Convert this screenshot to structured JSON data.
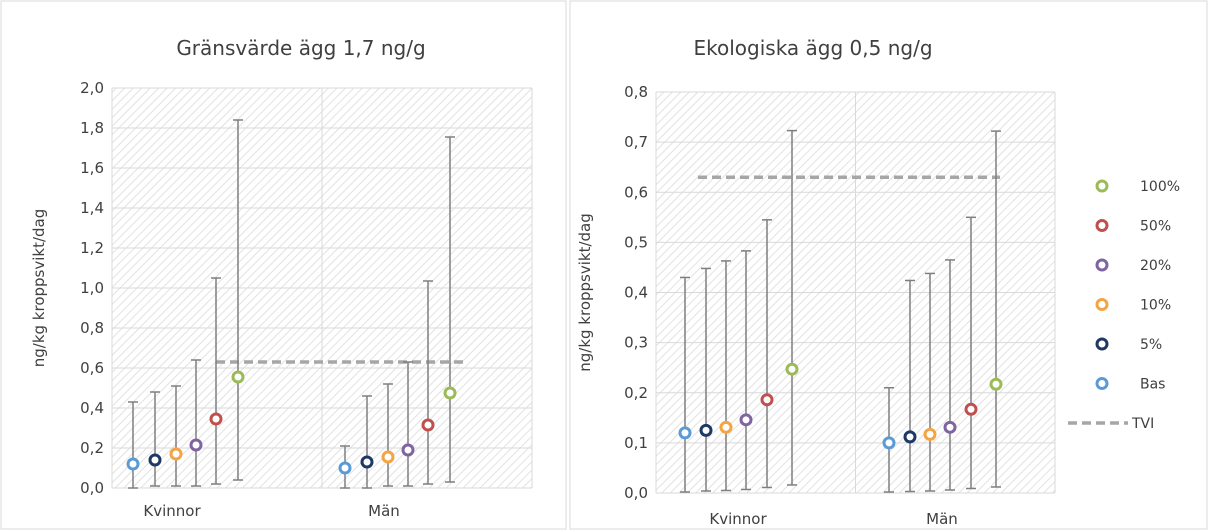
{
  "chart_data": [
    {
      "type": "scatter",
      "title": "Gränsvärde ägg 1,7 ng/g",
      "ylabel": "ng/kg kroppsvikt/dag",
      "xlabel": "",
      "categories": [
        "Kvinnor",
        "Män"
      ],
      "ylim": [
        0,
        2.0
      ],
      "ytick_labels": [
        "0,0",
        "0,2",
        "0,4",
        "0,6",
        "0,8",
        "1,0",
        "1,2",
        "1,4",
        "1,6",
        "1,8",
        "2,0"
      ],
      "grid": true,
      "tvi": 0.63,
      "series": [
        {
          "key": "bas",
          "color": "#5B9BD5",
          "values": [
            0.12,
            0.1
          ],
          "low": [
            0.0,
            0.0
          ],
          "high": [
            0.43,
            0.21
          ]
        },
        {
          "key": "p5",
          "color": "#1F3864",
          "values": [
            0.14,
            0.13
          ],
          "low": [
            0.01,
            0.0
          ],
          "high": [
            0.48,
            0.46
          ]
        },
        {
          "key": "p10",
          "color": "#F4A442",
          "values": [
            0.17,
            0.155
          ],
          "low": [
            0.01,
            0.01
          ],
          "high": [
            0.51,
            0.52
          ]
        },
        {
          "key": "p20",
          "color": "#8064A2",
          "values": [
            0.215,
            0.19
          ],
          "low": [
            0.01,
            0.01
          ],
          "high": [
            0.64,
            0.63
          ]
        },
        {
          "key": "p50",
          "color": "#C0504D",
          "values": [
            0.345,
            0.315
          ],
          "low": [
            0.02,
            0.02
          ],
          "high": [
            1.05,
            1.035
          ]
        },
        {
          "key": "p100",
          "color": "#9BBB59",
          "values": [
            0.555,
            0.475
          ],
          "low": [
            0.04,
            0.03
          ],
          "high": [
            1.84,
            1.755
          ]
        }
      ]
    },
    {
      "type": "scatter",
      "title": "Ekologiska ägg 0,5 ng/g",
      "ylabel": "ng/kg kroppsvikt/dag",
      "xlabel": "",
      "categories": [
        "Kvinnor",
        "Män"
      ],
      "ylim": [
        0,
        0.8
      ],
      "ytick_labels": [
        "0,0",
        "0,1",
        "0,2",
        "0,3",
        "0,4",
        "0,5",
        "0,6",
        "0,7",
        "0,8"
      ],
      "grid": true,
      "legend_position": "right",
      "tvi": 0.63,
      "series": [
        {
          "key": "bas",
          "color": "#5B9BD5",
          "values": [
            0.12,
            0.1
          ],
          "low": [
            0.002,
            0.002
          ],
          "high": [
            0.43,
            0.21
          ]
        },
        {
          "key": "p5",
          "color": "#1F3864",
          "values": [
            0.125,
            0.112
          ],
          "low": [
            0.004,
            0.003
          ],
          "high": [
            0.448,
            0.424
          ]
        },
        {
          "key": "p10",
          "color": "#F4A442",
          "values": [
            0.131,
            0.117
          ],
          "low": [
            0.005,
            0.004
          ],
          "high": [
            0.463,
            0.438
          ]
        },
        {
          "key": "p20",
          "color": "#8064A2",
          "values": [
            0.146,
            0.131
          ],
          "low": [
            0.007,
            0.006
          ],
          "high": [
            0.483,
            0.465
          ]
        },
        {
          "key": "p50",
          "color": "#C0504D",
          "values": [
            0.186,
            0.167
          ],
          "low": [
            0.011,
            0.009
          ],
          "high": [
            0.545,
            0.55
          ]
        },
        {
          "key": "p100",
          "color": "#9BBB59",
          "values": [
            0.247,
            0.217
          ],
          "low": [
            0.016,
            0.012
          ],
          "high": [
            0.723,
            0.722
          ]
        }
      ]
    }
  ],
  "legend": [
    {
      "label": "100%",
      "color": "#9BBB59",
      "kind": "marker"
    },
    {
      "label": "50%",
      "color": "#C0504D",
      "kind": "marker"
    },
    {
      "label": "20%",
      "color": "#8064A2",
      "kind": "marker"
    },
    {
      "label": "10%",
      "color": "#F4A442",
      "kind": "marker"
    },
    {
      "label": "5%",
      "color": "#1F3864",
      "kind": "marker"
    },
    {
      "label": "Bas",
      "color": "#5B9BD5",
      "kind": "marker"
    },
    {
      "label": "TVI",
      "color": "#A6A6A6",
      "kind": "dashed-line"
    }
  ],
  "colors": {
    "error_bar": "#7F7F7F",
    "gridline": "#D9D9D9",
    "hatch": "#E4E4E4",
    "tvi_line": "#A6A6A6",
    "text": "#404040",
    "border": "#D9D9D9"
  }
}
